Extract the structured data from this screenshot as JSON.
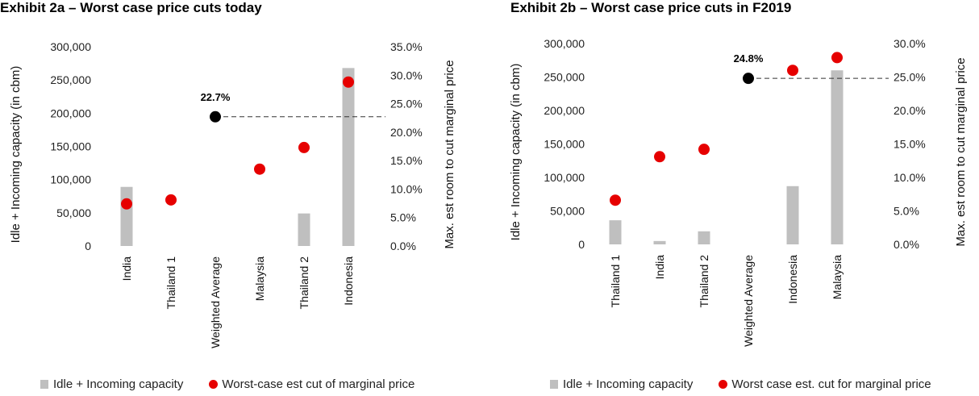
{
  "chart_data": [
    {
      "type": "bar",
      "title": "Exhibit 2a – Worst case price cuts today",
      "categories": [
        "India",
        "Thailand 1",
        "Weighted Average",
        "Malaysia",
        "Thailand 2",
        "Indonesia"
      ],
      "ylabel": "Idle + Incoming capacity (in cbm)",
      "y2label": "Max. est room to cut marginal price",
      "ylim": [
        0,
        300000
      ],
      "y2lim": [
        0,
        35
      ],
      "yticks": [
        "0",
        "50,000",
        "100,000",
        "150,000",
        "200,000",
        "250,000",
        "300,000"
      ],
      "y2ticks": [
        "0.0%",
        "5.0%",
        "10.0%",
        "15.0%",
        "20.0%",
        "25.0%",
        "30.0%",
        "35.0%"
      ],
      "grid": false,
      "legend_position": "bottom",
      "series": [
        {
          "name": "Idle + Incoming capacity",
          "kind": "bar",
          "axis": "left",
          "color": "#bfbfbf",
          "values": [
            89000,
            null,
            null,
            null,
            49000,
            268000
          ]
        },
        {
          "name": "Worst-case est cut of marginal price",
          "kind": "dot",
          "axis": "right",
          "color": "#e60000",
          "values": [
            7.4,
            8.1,
            null,
            13.5,
            17.3,
            28.8
          ]
        }
      ],
      "weighted_average": {
        "category": "Weighted Average",
        "value": 22.7,
        "label": "22.7%",
        "color": "#000000"
      }
    },
    {
      "type": "bar",
      "title": "Exhibit 2b – Worst case price cuts in F2019",
      "categories": [
        "Thailand 1",
        "India",
        "Thailand 2",
        "Weighted Average",
        "Indonesia",
        "Malaysia"
      ],
      "ylabel": "Idle + Incoming capacity (in cbm)",
      "y2label": "Max. est room to cut marginal price",
      "ylim": [
        0,
        300000
      ],
      "y2lim": [
        0,
        30
      ],
      "yticks": [
        "0",
        "50,000",
        "100,000",
        "150,000",
        "200,000",
        "250,000",
        "300,000"
      ],
      "y2ticks": [
        "0.0%",
        "5.0%",
        "10.0%",
        "15.0%",
        "20.0%",
        "25.0%",
        "30.0%"
      ],
      "grid": false,
      "legend_position": "bottom",
      "series": [
        {
          "name": "Idle + Incoming capacity",
          "kind": "bar",
          "axis": "left",
          "color": "#bfbfbf",
          "values": [
            36000,
            5000,
            19500,
            null,
            87000,
            260000
          ]
        },
        {
          "name": "Worst case est. cut for marginal price",
          "kind": "dot",
          "axis": "right",
          "color": "#e60000",
          "values": [
            6.6,
            13.1,
            14.2,
            null,
            26.0,
            27.9
          ]
        }
      ],
      "weighted_average": {
        "category": "Weighted Average",
        "value": 24.8,
        "label": "24.8%",
        "color": "#000000"
      }
    }
  ]
}
